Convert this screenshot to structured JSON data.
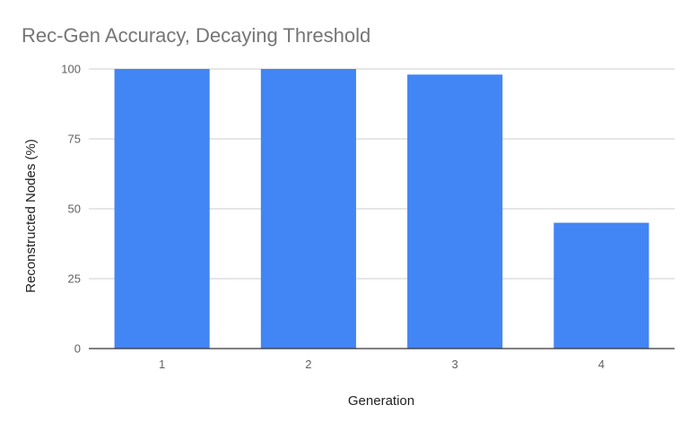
{
  "chart_data": {
    "type": "bar",
    "title": "Rec-Gen Accuracy, Decaying Threshold",
    "xlabel": "Generation",
    "ylabel": "Reconstructed Nodes (%)",
    "categories": [
      "1",
      "2",
      "3",
      "4"
    ],
    "values": [
      100,
      100,
      98,
      45
    ],
    "ylim": [
      0,
      100
    ],
    "yticks": [
      0,
      25,
      50,
      75,
      100
    ],
    "grid": true,
    "legend": "none",
    "bar_color": "#4285f4"
  }
}
